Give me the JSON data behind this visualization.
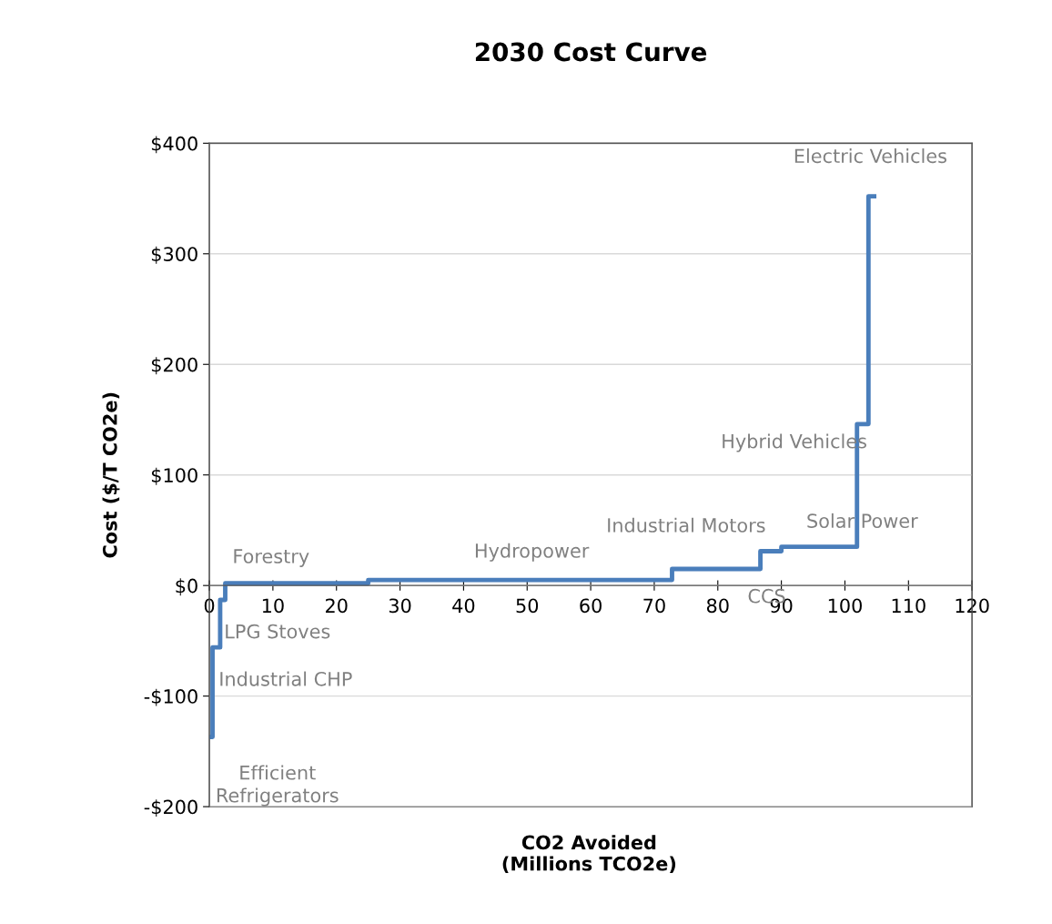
{
  "chart_data": {
    "type": "line",
    "title": "2030 Cost Curve",
    "xlabel": "CO2 Avoided\n(Millions TCO2e)",
    "ylabel": "Cost ($/T CO2e)",
    "series": [
      {
        "color": "#4a7ebb",
        "x": [
          0.2,
          0.5,
          0.5,
          1.7,
          1.7,
          2.5,
          2.5,
          25,
          25,
          72.8,
          72.8,
          86.7,
          86.7,
          90,
          90,
          101.9,
          101.9,
          103.7,
          103.7,
          104.6
        ],
        "values": [
          -137,
          -137,
          -56,
          -56,
          -13,
          -13,
          2,
          2,
          5,
          5,
          15,
          15,
          31,
          31,
          35,
          35,
          146,
          146,
          352,
          352
        ]
      }
    ],
    "xlim": [
      0,
      120
    ],
    "xticks": [
      0,
      10,
      20,
      30,
      40,
      50,
      60,
      70,
      80,
      90,
      100,
      110,
      120
    ],
    "ylim": [
      -200,
      400
    ],
    "yticks": [
      {
        "value": -200,
        "label": "-$200"
      },
      {
        "value": -100,
        "label": "-$100"
      },
      {
        "value": 0,
        "label": "$0"
      },
      {
        "value": 100,
        "label": "$100"
      },
      {
        "value": 200,
        "label": "$200"
      },
      {
        "value": 300,
        "label": "$300"
      },
      {
        "value": 400,
        "label": "$400"
      }
    ],
    "grid": "y",
    "legend": false,
    "marker": "none",
    "line_style": "solid",
    "annotations": [
      "Forestry",
      "Hydropower",
      "Industrial Motors",
      "Solar Power",
      "Hybrid Vehicles",
      "Electric Vehicles",
      "CCS",
      "LPG Stoves",
      "Industrial CHP",
      "Efficient\nRefrigerators"
    ]
  }
}
